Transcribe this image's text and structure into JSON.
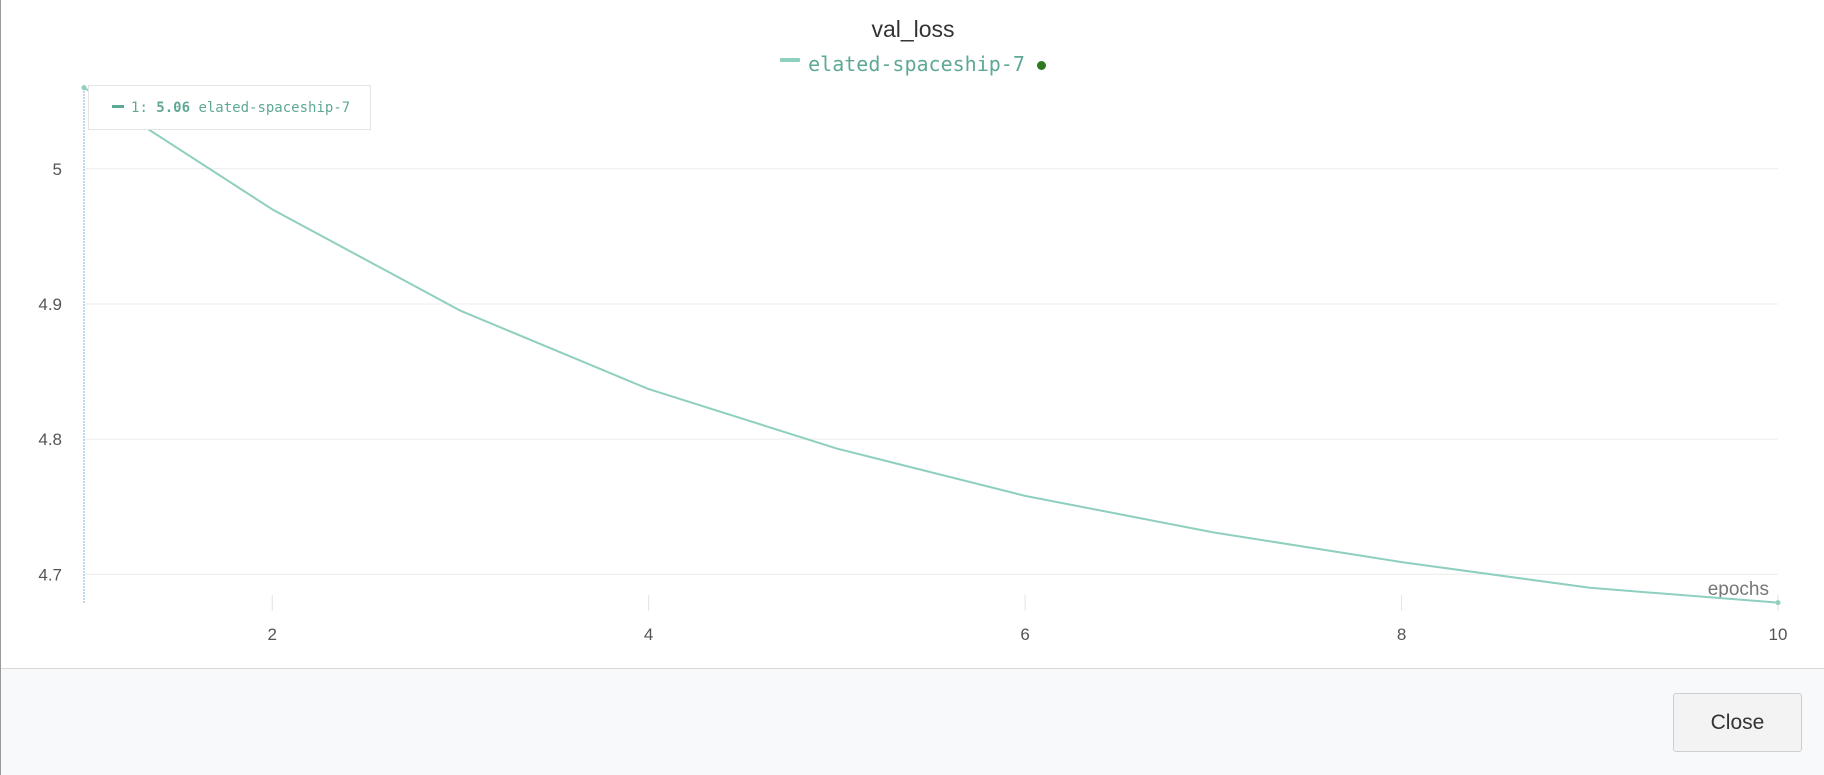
{
  "chart_data": {
    "type": "line",
    "title": "val_loss",
    "xlabel": "epochs",
    "ylabel": "",
    "xlim": [
      1,
      10
    ],
    "ylim": [
      4.678,
      5.062
    ],
    "x_ticks": [
      2,
      4,
      6,
      8,
      10
    ],
    "y_ticks": [
      4.7,
      4.8,
      4.9,
      5
    ],
    "grid": true,
    "legend_position": "top",
    "series": [
      {
        "name": "elated-spaceship-7",
        "color": "#8ecfbf",
        "x": [
          1,
          2,
          3,
          4,
          5,
          6,
          7,
          8,
          9,
          10
        ],
        "y": [
          5.06,
          4.97,
          4.895,
          4.837,
          4.793,
          4.758,
          4.731,
          4.709,
          4.69,
          4.679
        ]
      }
    ],
    "tooltip": {
      "step": "1",
      "value": "5.06",
      "series": "elated-spaceship-7"
    }
  },
  "legend": {
    "series_name": "elated-spaceship-7",
    "status_dot_color": "#2d7a1f"
  },
  "footer": {
    "close_label": "Close"
  }
}
